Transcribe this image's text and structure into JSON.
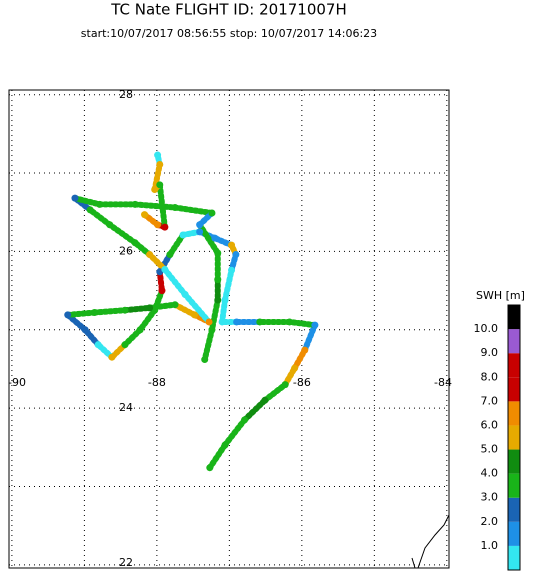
{
  "chart_data": {
    "type": "track",
    "title": "TC Nate  FLIGHT ID: 20171007H",
    "subtitle": "start:10/07/2017 08:56:55 stop: 10/07/2017 14:06:23",
    "xlim": [
      -90.04,
      -83.97
    ],
    "ylim": [
      21.96,
      28.06
    ],
    "xticks": [
      -90,
      -88,
      -86,
      -84
    ],
    "yticks": [
      28,
      26,
      24,
      22
    ],
    "grid": true,
    "lon": [
      -87.27,
      -87.06,
      -86.79,
      -86.51,
      -86.23,
      -86.1,
      -85.96,
      -85.82,
      -86.17,
      -86.58,
      -86.9,
      -87.1,
      -87.06,
      -86.97,
      -86.91,
      -86.97,
      -87.2,
      -87.41,
      -87.64,
      -87.82,
      -87.96,
      -87.93,
      -88.03,
      -88.23,
      -88.44,
      -88.62,
      -88.81,
      -88.99,
      -89.23,
      -88.86,
      -88.44,
      -88.1,
      -87.75,
      -87.48,
      -87.28,
      -87.61,
      -87.89,
      -88.1,
      -88.3,
      -88.65,
      -88.92,
      -89.13,
      -88.79,
      -88.3,
      -87.75,
      -87.24,
      -87.41,
      -87.16,
      -87.16,
      -87.16,
      -87.24,
      -87.34,
      -88.17,
      -87.99,
      -87.89,
      -87.96,
      -88.03,
      -87.96,
      -87.99
    ],
    "lat": [
      23.24,
      23.53,
      23.85,
      24.1,
      24.3,
      24.51,
      24.74,
      25.06,
      25.1,
      25.1,
      25.1,
      25.1,
      25.38,
      25.76,
      25.96,
      26.08,
      26.17,
      26.25,
      26.21,
      25.96,
      25.74,
      25.5,
      25.25,
      25.0,
      24.81,
      24.65,
      24.81,
      25.0,
      25.19,
      25.22,
      25.25,
      25.28,
      25.32,
      25.19,
      25.1,
      25.45,
      25.77,
      25.96,
      26.11,
      26.34,
      26.53,
      26.68,
      26.6,
      26.6,
      26.56,
      26.49,
      26.34,
      25.98,
      25.64,
      25.38,
      25.0,
      24.62,
      26.47,
      26.34,
      26.31,
      26.85,
      26.79,
      27.11,
      27.23
    ],
    "swh": [
      3.5,
      3.5,
      3.5,
      4.5,
      3.5,
      5.5,
      6.5,
      1.5,
      3.5,
      3.5,
      1.5,
      0.5,
      0.5,
      0.5,
      1.5,
      5.5,
      1.5,
      1.5,
      0.5,
      3.5,
      2.5,
      7.5,
      3.5,
      3.5,
      3.5,
      5.5,
      0.5,
      2.5,
      2.5,
      3.5,
      3.5,
      4.5,
      3.5,
      5.5,
      6.5,
      0.5,
      0.5,
      5.5,
      3.5,
      3.5,
      3.5,
      2.5,
      3.5,
      3.5,
      3.5,
      3.5,
      1.5,
      3.5,
      3.5,
      4.5,
      3.5,
      3.5,
      5.5,
      6.5,
      7.5,
      3.5,
      5.5,
      5.5,
      0.5
    ],
    "colorbar": {
      "label": "SWH [m]",
      "bounds": [
        0,
        1,
        2,
        3,
        4,
        5,
        6,
        7,
        8,
        9,
        10,
        11
      ],
      "colors": [
        "#33e6f0",
        "#1e90e6",
        "#1a64b4",
        "#19b419",
        "#108c10",
        "#e6aa00",
        "#f08c00",
        "#c80000",
        "#c80000",
        "#9a5ad2",
        "#000000"
      ],
      "ticks": [
        {
          "value": 1,
          "label": "1.0"
        },
        {
          "value": 2,
          "label": "2.0"
        },
        {
          "value": 3,
          "label": "3.0"
        },
        {
          "value": 4,
          "label": "4.0"
        },
        {
          "value": 5,
          "label": "5.0"
        },
        {
          "value": 6,
          "label": "6.0"
        },
        {
          "value": 7,
          "label": "7.0"
        },
        {
          "value": 8,
          "label": "8.0"
        },
        {
          "value": 9,
          "label": "9.0"
        },
        {
          "value": 10,
          "label": "10.0"
        }
      ]
    }
  }
}
